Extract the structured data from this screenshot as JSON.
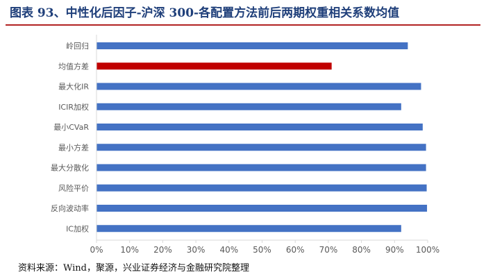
{
  "figure": {
    "title": "图表 93、中性化后因子-沪深 300-各配置方法前后两期权重相关系数均值",
    "source": "资料来源：Wind，聚源，兴业证券经济与金融研究院整理"
  },
  "chart_data": {
    "type": "bar",
    "orientation": "horizontal",
    "title": "",
    "xlabel": "",
    "ylabel": "",
    "categories": [
      "岭回归",
      "均值方差",
      "最大化IR",
      "ICIR加权",
      "最小CVaR",
      "最小方差",
      "最大分散化",
      "风险平价",
      "反向波动率",
      "IC加权"
    ],
    "values": [
      0.94,
      0.71,
      0.98,
      0.92,
      0.985,
      0.995,
      0.995,
      0.997,
      0.998,
      0.92
    ],
    "xlim": [
      0,
      1
    ],
    "ticks": [
      "0%",
      "10%",
      "20%",
      "30%",
      "40%",
      "50%",
      "60%",
      "70%",
      "80%",
      "90%",
      "100%"
    ],
    "tick_values": [
      0,
      0.1,
      0.2,
      0.3,
      0.4,
      0.5,
      0.6,
      0.7,
      0.8,
      0.9,
      1.0
    ],
    "grid": false,
    "legend": "none",
    "colors": {
      "default": "#4472c4",
      "highlight": "#c00000",
      "axis": "#d9d9d9",
      "label": "#595959"
    },
    "highlight_index": 1
  }
}
